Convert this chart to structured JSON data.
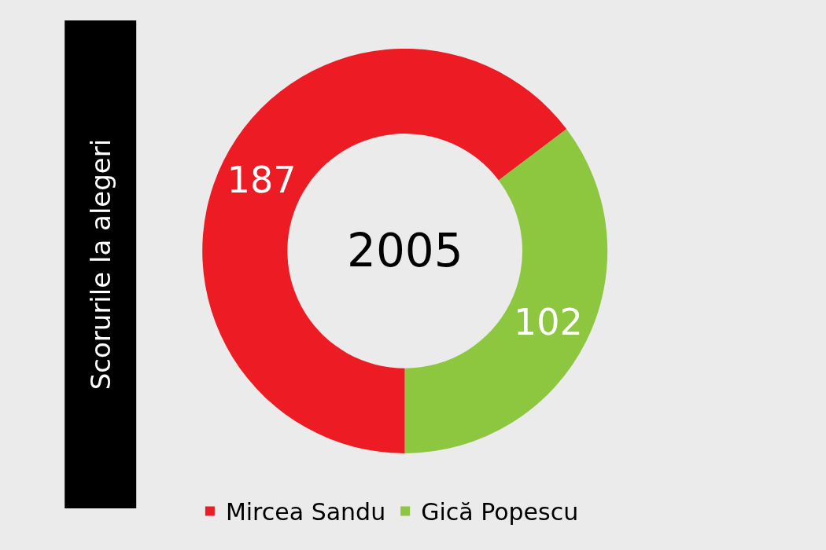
{
  "chart_data": {
    "type": "donut",
    "title": "Scorurile la alegeri",
    "annotations": [
      "2005"
    ],
    "categories": [
      "Mircea Sandu",
      "Gică Popescu"
    ],
    "values": [
      187,
      102
    ],
    "colors": [
      "#ed1c24",
      "#8dc63f"
    ],
    "data_labels": true,
    "legend": "bottom"
  }
}
